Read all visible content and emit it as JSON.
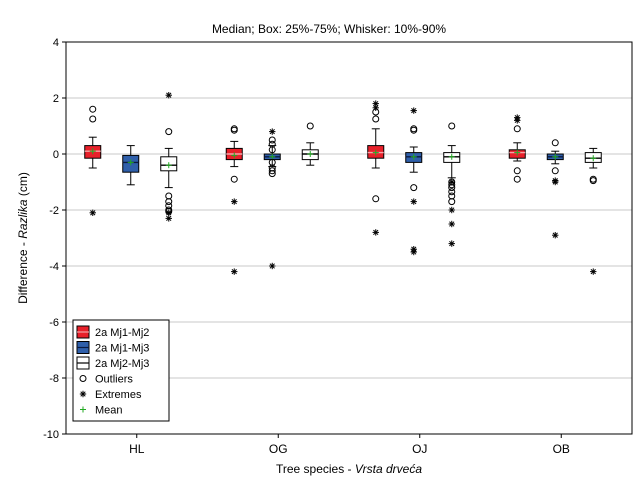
{
  "chart_data": {
    "type": "box",
    "title": "Median; Box: 25%-75%; Whisker: 10%-90%",
    "ylabel_main": "Difference - ",
    "ylabel_italic": "Razlika",
    "ylabel_unit": " (cm)",
    "xlabel_main": "Tree species - ",
    "xlabel_italic": "Vrsta drveća",
    "ylim": [
      -10,
      4
    ],
    "yticks": [
      -10,
      -8,
      -6,
      -4,
      -2,
      0,
      2,
      4
    ],
    "grid": "horizontal",
    "legend_position": "bottom-left",
    "categories": [
      "HL",
      "OG",
      "OJ",
      "OB"
    ],
    "series": [
      {
        "name": "2a Mj1-Mj2",
        "color": "#e8202a",
        "median_color": "#f4a3a7",
        "boxes": [
          {
            "category": "HL",
            "p10": -0.5,
            "q1": -0.15,
            "median": 0.1,
            "q3": 0.3,
            "p90": 0.6,
            "mean": 0.1,
            "outliers": [
              1.6,
              1.25
            ],
            "extremes": [
              -2.1
            ]
          },
          {
            "category": "OG",
            "p10": -0.45,
            "q1": -0.2,
            "median": 0.0,
            "q3": 0.2,
            "p90": 0.45,
            "mean": -0.05,
            "outliers": [
              0.9,
              0.85,
              -0.9
            ],
            "extremes": [
              -1.7,
              -4.2
            ]
          },
          {
            "category": "OJ",
            "p10": -0.5,
            "q1": -0.15,
            "median": 0.05,
            "q3": 0.3,
            "p90": 0.9,
            "mean": 0.05,
            "outliers": [
              1.5,
              1.25,
              -1.6
            ],
            "extremes": [
              1.8,
              1.65,
              -2.8
            ]
          },
          {
            "category": "OB",
            "p10": -0.25,
            "q1": -0.15,
            "median": 0.05,
            "q3": 0.15,
            "p90": 0.4,
            "mean": 0.05,
            "outliers": [
              0.9,
              -0.6,
              -0.9
            ],
            "extremes": [
              1.3,
              1.2
            ]
          }
        ]
      },
      {
        "name": "2a Mj1-Mj3",
        "color": "#2f5faa",
        "median_color": "#0a1a40",
        "boxes": [
          {
            "category": "HL",
            "p10": -1.1,
            "q1": -0.65,
            "median": -0.3,
            "q3": -0.05,
            "p90": 0.3,
            "mean": -0.3,
            "outliers": [],
            "extremes": []
          },
          {
            "category": "OG",
            "p10": -0.45,
            "q1": -0.2,
            "median": -0.1,
            "q3": 0.0,
            "p90": 0.3,
            "mean": -0.1,
            "outliers": [
              0.5,
              0.35,
              0.15,
              -0.3,
              -0.5,
              -0.6,
              -0.7
            ],
            "extremes": [
              0.8,
              -4.0
            ]
          },
          {
            "category": "OJ",
            "p10": -0.65,
            "q1": -0.3,
            "median": -0.1,
            "q3": 0.05,
            "p90": 0.25,
            "mean": -0.1,
            "outliers": [
              0.9,
              0.85,
              -1.2
            ],
            "extremes": [
              1.55,
              -1.7,
              -3.4,
              -3.5
            ]
          },
          {
            "category": "OB",
            "p10": -0.35,
            "q1": -0.2,
            "median": -0.1,
            "q3": 0.0,
            "p90": 0.1,
            "mean": -0.1,
            "outliers": [
              0.4,
              -0.6
            ],
            "extremes": [
              -0.95,
              -1.0,
              -2.9
            ]
          }
        ]
      },
      {
        "name": "2a Mj2-Mj3",
        "color": "#ffffff",
        "median_color": "#000000",
        "boxes": [
          {
            "category": "HL",
            "p10": -1.2,
            "q1": -0.6,
            "median": -0.4,
            "q3": -0.1,
            "p90": 0.2,
            "mean": -0.4,
            "outliers": [
              0.8,
              -1.5,
              -1.7,
              -1.85,
              -2.0,
              -2.05
            ],
            "extremes": [
              2.1,
              -2.1,
              -2.3
            ]
          },
          {
            "category": "OG",
            "p10": -0.4,
            "q1": -0.2,
            "median": 0.0,
            "q3": 0.15,
            "p90": 0.4,
            "mean": 0.0,
            "outliers": [
              1.0
            ],
            "extremes": []
          },
          {
            "category": "OJ",
            "p10": -0.85,
            "q1": -0.3,
            "median": -0.1,
            "q3": 0.05,
            "p90": 0.3,
            "mean": -0.1,
            "outliers": [
              1.0,
              -1.0,
              -1.1,
              -1.2,
              -1.35,
              -1.5,
              -1.7
            ],
            "extremes": [
              -1.0,
              -2.0,
              -2.5,
              -3.2
            ]
          },
          {
            "category": "OB",
            "p10": -0.5,
            "q1": -0.3,
            "median": -0.15,
            "q3": 0.05,
            "p90": 0.2,
            "mean": -0.15,
            "outliers": [
              -0.9,
              -0.95
            ],
            "extremes": [
              -4.2
            ]
          }
        ]
      }
    ],
    "legend": [
      {
        "label": "2a Mj1-Mj2",
        "kind": "box",
        "color": "#e8202a",
        "line": "#f4a3a7"
      },
      {
        "label": "2a Mj1-Mj3",
        "kind": "box",
        "color": "#2f5faa",
        "line": "#0a1a40"
      },
      {
        "label": "2a Mj2-Mj3",
        "kind": "box",
        "color": "#ffffff",
        "line": "#000000"
      },
      {
        "label": "Outliers",
        "kind": "circle"
      },
      {
        "label": "Extremes",
        "kind": "asterisk"
      },
      {
        "label": "Mean",
        "kind": "plus",
        "color": "#22aa22"
      }
    ]
  }
}
